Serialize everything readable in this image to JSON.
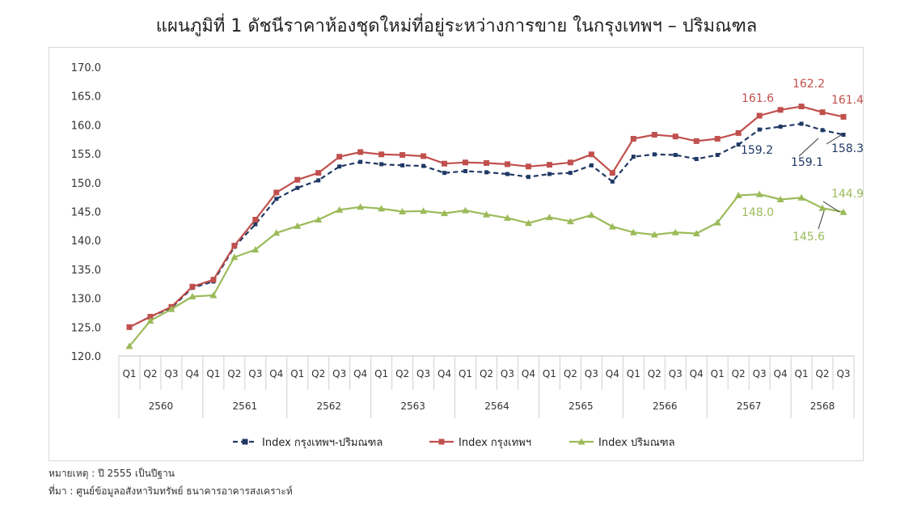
{
  "title": "แผนภูมิที่ 1 ดัชนีราคาห้องชุดใหม่ที่อยู่ระหว่างการขาย ในกรุงเทพฯ – ปริมณฑล",
  "notes": {
    "remark": "หมายเหตุ : ปี 2555 เป็นปีฐาน",
    "source": "ที่มา : ศูนย์ข้อมูลอสังหาริมทรัพย์ ธนาคารอาคารสงเคราะห์"
  },
  "chart_data": {
    "type": "line",
    "title": "แผนภูมิที่ 1 ดัชนีราคาห้องชุดใหม่ที่อยู่ระหว่างการขาย ในกรุงเทพฯ – ปริมณฑล",
    "ylim": [
      120,
      170
    ],
    "yticks": [
      "120.0",
      "125.0",
      "130.0",
      "135.0",
      "140.0",
      "145.0",
      "150.0",
      "155.0",
      "160.0",
      "165.0",
      "170.0"
    ],
    "grid": false,
    "legend_position": "bottom",
    "quarters": [
      "Q1",
      "Q2",
      "Q3",
      "Q4",
      "Q1",
      "Q2",
      "Q3",
      "Q4",
      "Q1",
      "Q2",
      "Q3",
      "Q4",
      "Q1",
      "Q2",
      "Q3",
      "Q4",
      "Q1",
      "Q2",
      "Q3",
      "Q4",
      "Q1",
      "Q2",
      "Q3",
      "Q4",
      "Q1",
      "Q2",
      "Q3",
      "Q4",
      "Q1",
      "Q2",
      "Q3",
      "Q4",
      "Q1",
      "Q2",
      "Q3"
    ],
    "years": [
      {
        "label": "2560",
        "count": 4
      },
      {
        "label": "2561",
        "count": 4
      },
      {
        "label": "2562",
        "count": 4
      },
      {
        "label": "2563",
        "count": 4
      },
      {
        "label": "2564",
        "count": 4
      },
      {
        "label": "2565",
        "count": 4
      },
      {
        "label": "2566",
        "count": 4
      },
      {
        "label": "2567",
        "count": 4
      },
      {
        "label": "2568",
        "count": 3
      }
    ],
    "series": [
      {
        "name": "Index กรุงเทพฯ-ปริมณฑล",
        "color": "#1f3864",
        "style": "dashed",
        "marker": "square",
        "values": [
          125.0,
          126.8,
          128.3,
          131.8,
          132.9,
          138.9,
          142.8,
          147.2,
          149.1,
          150.4,
          152.8,
          153.6,
          153.2,
          153.0,
          152.9,
          151.7,
          152.0,
          151.8,
          151.5,
          151.0,
          151.5,
          151.7,
          153.0,
          150.2,
          154.5,
          154.9,
          154.8,
          154.1,
          154.8,
          156.6,
          159.2,
          159.7,
          160.2,
          159.1,
          158.3
        ]
      },
      {
        "name": "Index กรุงเทพฯ",
        "color": "#c0504d",
        "style": "solid",
        "marker": "square",
        "values": [
          125.0,
          126.8,
          128.5,
          132.0,
          133.2,
          139.1,
          143.6,
          148.3,
          150.5,
          151.7,
          154.5,
          155.3,
          154.9,
          154.8,
          154.6,
          153.3,
          153.5,
          153.4,
          153.2,
          152.8,
          153.1,
          153.5,
          154.9,
          151.7,
          157.6,
          158.3,
          158.0,
          157.2,
          157.6,
          158.6,
          161.6,
          162.6,
          163.2,
          162.2,
          161.4
        ]
      },
      {
        "name": "Index ปริมณฑล",
        "color": "#9bbb59",
        "style": "solid",
        "marker": "triangle",
        "values": [
          121.7,
          126.1,
          128.1,
          130.3,
          130.5,
          137.1,
          138.4,
          141.3,
          142.5,
          143.6,
          145.3,
          145.8,
          145.5,
          145.0,
          145.1,
          144.7,
          145.2,
          144.5,
          143.9,
          143.0,
          144.0,
          143.3,
          144.4,
          142.4,
          141.4,
          141.0,
          141.4,
          141.2,
          143.1,
          147.8,
          148.0,
          147.1,
          147.4,
          145.6,
          144.9
        ]
      }
    ],
    "annotations": [
      {
        "text": "161.6",
        "series": 1,
        "color": "#c0504d"
      },
      {
        "text": "162.2",
        "series": 1,
        "color": "#c0504d"
      },
      {
        "text": "161.4",
        "series": 1,
        "color": "#c0504d"
      },
      {
        "text": "159.2",
        "series": 0,
        "color": "#1f3864"
      },
      {
        "text": "159.1",
        "series": 0,
        "color": "#1f3864"
      },
      {
        "text": "158.3",
        "series": 0,
        "color": "#1f3864"
      },
      {
        "text": "148.0",
        "series": 2,
        "color": "#9bbb59"
      },
      {
        "text": "145.6",
        "series": 2,
        "color": "#9bbb59"
      },
      {
        "text": "144.9",
        "series": 2,
        "color": "#9bbb59"
      }
    ]
  }
}
